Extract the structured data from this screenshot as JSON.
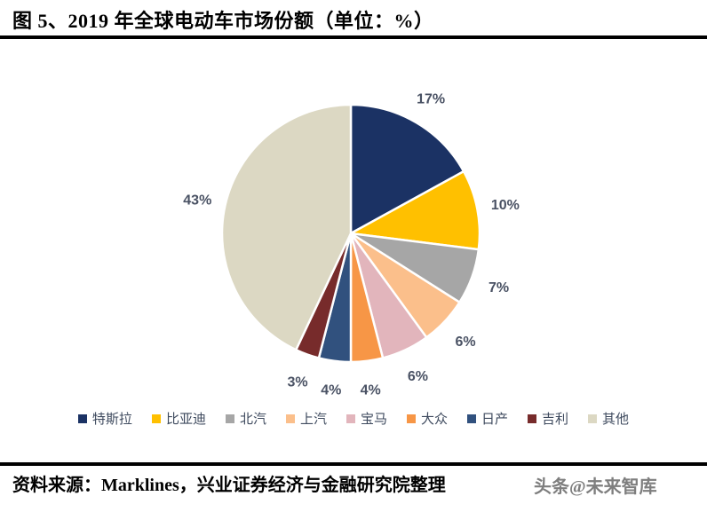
{
  "header": {
    "title": "图 5、2019 年全球电动车市场份额（单位：%）"
  },
  "chart_data": {
    "type": "pie",
    "title": "2019 年全球电动车市场份额",
    "unit": "%",
    "start_angle_deg": 0,
    "direction": "clockwise",
    "categories": [
      "特斯拉",
      "比亚迪",
      "北汽",
      "上汽",
      "宝马",
      "大众",
      "日产",
      "吉利",
      "其他"
    ],
    "values": [
      17,
      10,
      7,
      6,
      6,
      4,
      4,
      3,
      43
    ],
    "labels": [
      "17%",
      "10%",
      "7%",
      "6%",
      "6%",
      "4%",
      "4%",
      "3%",
      "43%"
    ],
    "colors": [
      "#1b3264",
      "#ffc000",
      "#a6a6a6",
      "#fbbf8b",
      "#e2b5bc",
      "#f79646",
      "#31517e",
      "#772b2b",
      "#dcd8c3"
    ],
    "slice_border_color": "#ffffff",
    "label_color": "#4a5264",
    "legend_position": "bottom"
  },
  "footer": {
    "source": "资料来源：Marklines，兴业证券经济与金融研究院整理",
    "watermark": "头条@未来智库"
  }
}
